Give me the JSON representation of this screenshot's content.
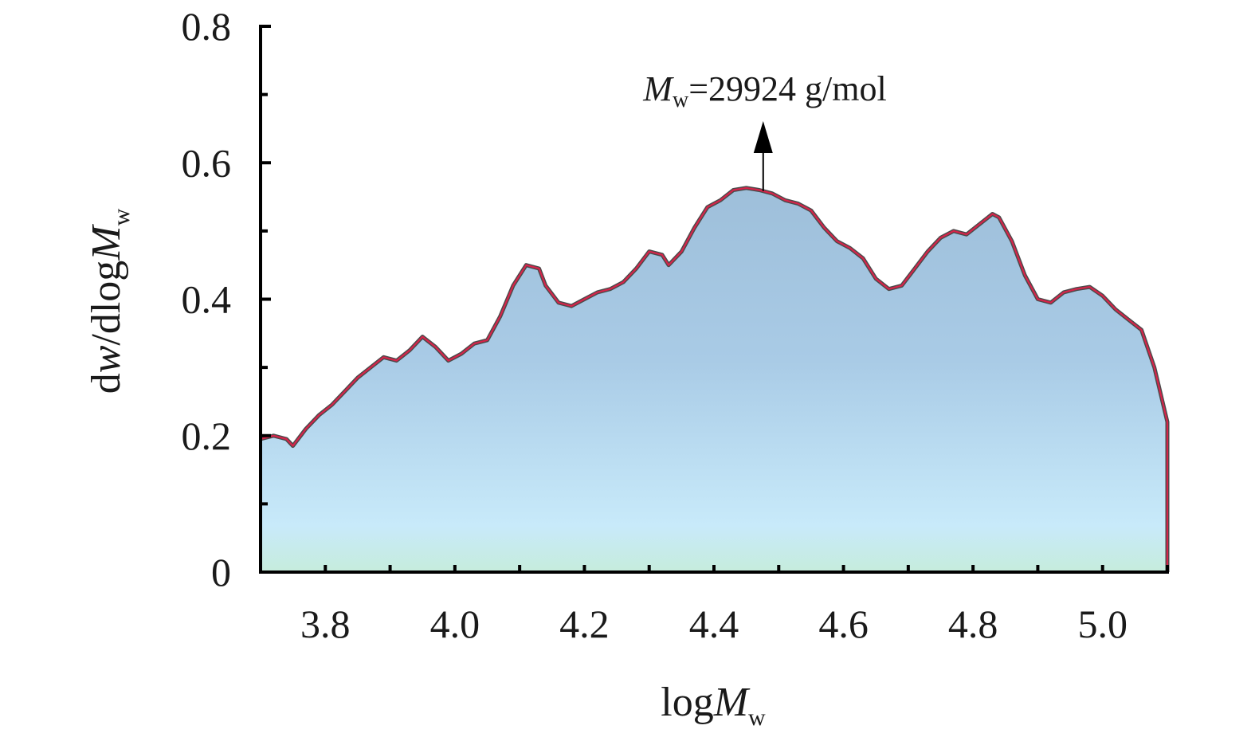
{
  "chart_data": {
    "type": "area",
    "xlabel": {
      "main": "log",
      "italic": "M",
      "sub": "w"
    },
    "ylabel": {
      "d": "d",
      "w": "w",
      "mid": "/dlog",
      "italic": "M",
      "sub": "w"
    },
    "xlim": [
      3.7,
      5.1
    ],
    "ylim": [
      0,
      0.8
    ],
    "x_ticks": [
      "3.8",
      "4.0",
      "4.2",
      "4.4",
      "4.6",
      "4.8",
      "5.0"
    ],
    "y_ticks": [
      "0",
      "0.2",
      "0.4",
      "0.6",
      "0.8"
    ],
    "grid": false,
    "annotation": {
      "italic": "M",
      "sub": "w",
      "text": "=29924 g/mol",
      "x": 4.476
    },
    "x": [
      3.7,
      3.72,
      3.74,
      3.75,
      3.77,
      3.79,
      3.81,
      3.83,
      3.85,
      3.87,
      3.89,
      3.91,
      3.93,
      3.95,
      3.97,
      3.99,
      4.01,
      4.03,
      4.05,
      4.07,
      4.09,
      4.11,
      4.13,
      4.14,
      4.16,
      4.18,
      4.2,
      4.22,
      4.24,
      4.26,
      4.28,
      4.3,
      4.32,
      4.33,
      4.35,
      4.37,
      4.39,
      4.41,
      4.43,
      4.45,
      4.47,
      4.49,
      4.51,
      4.53,
      4.55,
      4.57,
      4.59,
      4.61,
      4.63,
      4.65,
      4.67,
      4.69,
      4.71,
      4.73,
      4.75,
      4.77,
      4.79,
      4.81,
      4.83,
      4.84,
      4.86,
      4.88,
      4.9,
      4.92,
      4.94,
      4.96,
      4.98,
      5.0,
      5.02,
      5.04,
      5.06,
      5.08,
      5.1
    ],
    "y": [
      0.195,
      0.2,
      0.195,
      0.185,
      0.21,
      0.23,
      0.245,
      0.265,
      0.285,
      0.3,
      0.315,
      0.31,
      0.325,
      0.345,
      0.33,
      0.31,
      0.32,
      0.335,
      0.34,
      0.375,
      0.42,
      0.45,
      0.445,
      0.42,
      0.395,
      0.39,
      0.4,
      0.41,
      0.415,
      0.425,
      0.445,
      0.47,
      0.465,
      0.45,
      0.47,
      0.505,
      0.535,
      0.545,
      0.56,
      0.563,
      0.56,
      0.555,
      0.545,
      0.54,
      0.53,
      0.505,
      0.485,
      0.475,
      0.46,
      0.43,
      0.415,
      0.42,
      0.445,
      0.47,
      0.49,
      0.5,
      0.495,
      0.51,
      0.525,
      0.52,
      0.485,
      0.435,
      0.4,
      0.395,
      0.41,
      0.415,
      0.418,
      0.405,
      0.385,
      0.37,
      0.355,
      0.3,
      0.22
    ],
    "colors": {
      "line": "#d6244a",
      "edge": "#4a4a4a",
      "fill_top": "#9ebfda",
      "fill_bottom": "#c8eafa",
      "fill_base": "#c6ecdc",
      "axis": "#000000"
    }
  }
}
